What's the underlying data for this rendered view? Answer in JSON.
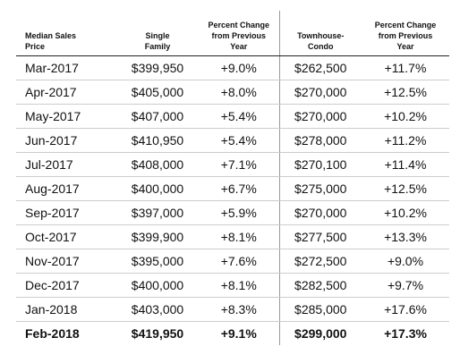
{
  "table": {
    "header": [
      [
        "Median Sales",
        "Price"
      ],
      [
        "Single",
        "Family"
      ],
      [
        "Percent Change",
        "from Previous",
        "Year"
      ],
      [
        "Townhouse-",
        "Condo"
      ],
      [
        "Percent Change",
        "from Previous",
        "Year"
      ]
    ],
    "rows": [
      [
        "Mar-2017",
        "$399,950",
        "+9.0%",
        "$262,500",
        "+11.7%"
      ],
      [
        "Apr-2017",
        "$405,000",
        "+8.0%",
        "$270,000",
        "+12.5%"
      ],
      [
        "May-2017",
        "$407,000",
        "+5.4%",
        "$270,000",
        "+10.2%"
      ],
      [
        "Jun-2017",
        "$410,950",
        "+5.4%",
        "$278,000",
        "+11.2%"
      ],
      [
        "Jul-2017",
        "$408,000",
        "+7.1%",
        "$270,100",
        "+11.4%"
      ],
      [
        "Aug-2017",
        "$400,000",
        "+6.7%",
        "$275,000",
        "+12.5%"
      ],
      [
        "Sep-2017",
        "$397,000",
        "+5.9%",
        "$270,000",
        "+10.2%"
      ],
      [
        "Oct-2017",
        "$399,900",
        "+8.1%",
        "$277,500",
        "+13.3%"
      ],
      [
        "Nov-2017",
        "$395,000",
        "+7.6%",
        "$272,500",
        "+9.0%"
      ],
      [
        "Dec-2017",
        "$400,000",
        "+8.1%",
        "$282,500",
        "+9.7%"
      ],
      [
        "Jan-2018",
        "$403,000",
        "+8.3%",
        "$285,000",
        "+17.6%"
      ],
      [
        "Feb-2018",
        "$419,950",
        "+9.1%",
        "$299,000",
        "+17.3%"
      ]
    ]
  }
}
